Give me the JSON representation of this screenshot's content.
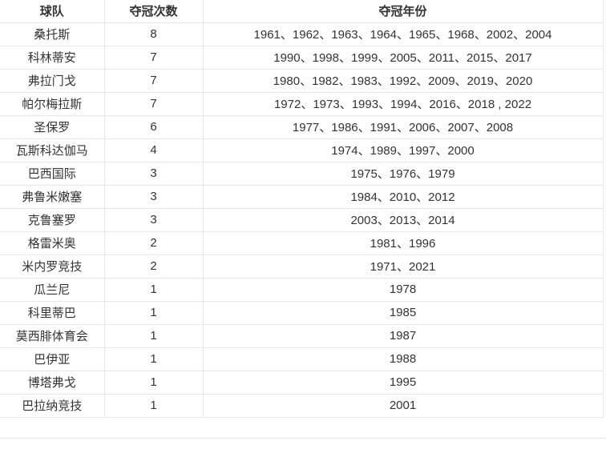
{
  "table": {
    "columns": [
      {
        "key": "team",
        "label": "球队"
      },
      {
        "key": "titles",
        "label": "夺冠次数"
      },
      {
        "key": "years",
        "label": "夺冠年份"
      }
    ],
    "rows": [
      {
        "team": "桑托斯",
        "titles": "8",
        "years": "1961、1962、1963、1964、1965、1968、2002、2004"
      },
      {
        "team": "科林蒂安",
        "titles": "7",
        "years": "1990、1998、1999、2005、2011、2015、2017"
      },
      {
        "team": "弗拉门戈",
        "titles": "7",
        "years": "1980、1982、1983、1992、2009、2019、2020"
      },
      {
        "team": "帕尔梅拉斯",
        "titles": "7",
        "years": "1972、1973、1993、1994、2016、2018 , 2022"
      },
      {
        "team": "圣保罗",
        "titles": "6",
        "years": "1977、1986、1991、2006、2007、2008"
      },
      {
        "team": "瓦斯科达伽马",
        "titles": "4",
        "years": "1974、1989、1997、2000"
      },
      {
        "team": "巴西国际",
        "titles": "3",
        "years": "1975、1976、1979"
      },
      {
        "team": "弗鲁米嫩塞",
        "titles": "3",
        "years": "1984、2010、2012"
      },
      {
        "team": "克鲁塞罗",
        "titles": "3",
        "years": "2003、2013、2014"
      },
      {
        "team": "格雷米奥",
        "titles": "2",
        "years": "1981、1996"
      },
      {
        "team": "米内罗竞技",
        "titles": "2",
        "years": "1971、2021"
      },
      {
        "team": "瓜兰尼",
        "titles": "1",
        "years": "1978"
      },
      {
        "team": "科里蒂巴",
        "titles": "1",
        "years": "1985"
      },
      {
        "team": "莫西腓体育会",
        "titles": "1",
        "years": "1987"
      },
      {
        "team": "巴伊亚",
        "titles": "1",
        "years": "1988"
      },
      {
        "team": "博塔弗戈",
        "titles": "1",
        "years": "1995"
      },
      {
        "team": "巴拉纳竞技",
        "titles": "1",
        "years": "2001"
      }
    ]
  },
  "colors": {
    "text": "#333333",
    "border": "#e8e8e8",
    "background": "#ffffff"
  }
}
